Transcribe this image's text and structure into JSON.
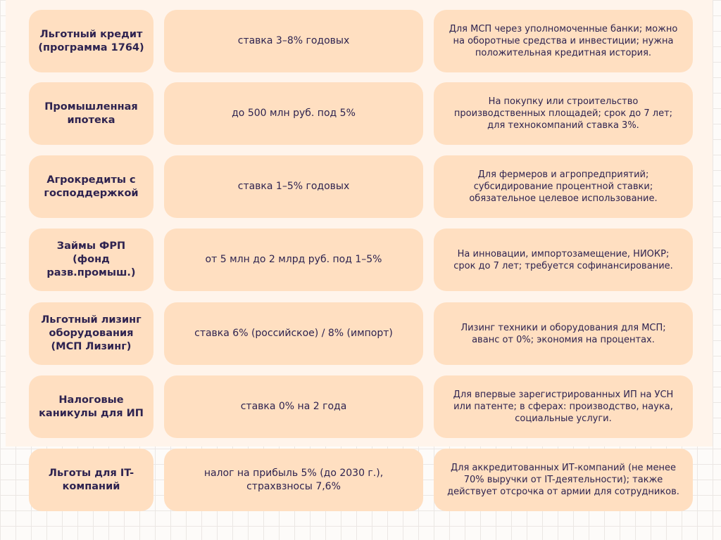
{
  "rows": [
    {
      "name": "Льготный кредит (программа 1764)",
      "terms": "ставка 3–8% годовых",
      "details": "Для МСП через уполномоченные банки; можно на оборотные средства и инвестиции; нужна положительная кредитная история."
    },
    {
      "name": "Промышленная ипотека",
      "terms": "до 500 млн руб. под 5%",
      "details": "На покупку или строительство производственных площадей; срок до 7 лет; для технокомпаний ставка 3%."
    },
    {
      "name": "Агрокредиты с господдержкой",
      "terms": "ставка 1–5% годовых",
      "details": "Для фермеров и агропредприятий; субсидирование процентной ставки; обязательное целевое использование."
    },
    {
      "name": "Займы ФРП (фонд разв.промыш.)",
      "terms": "от 5 млн до 2 млрд руб. под 1–5%",
      "details": "На инновации, импортозамещение, НИОКР; срок до 7 лет; требуется софинансирование."
    },
    {
      "name": "Льготный лизинг оборудования (МСП Лизинг)",
      "terms": "ставка 6% (российское) / 8% (импорт)",
      "details": "Лизинг техники и оборудования для МСП; аванс от 0%; экономия на процентах."
    },
    {
      "name": "Налоговые каникулы для ИП",
      "terms": "ставка 0% на 2 года",
      "details": "Для впервые зарегистрированных ИП на УСН или патенте; в сферах: производство, наука, социальные услуги."
    },
    {
      "name": "Льготы для IT-компаний",
      "terms": "налог на прибыль 5% (до 2030 г.), страхвзносы 7,6%",
      "details": "Для аккредитованных ИТ-компаний (не менее 70% выручки от IT-деятельности); также действует отсрочка от армии для сотрудников."
    }
  ],
  "colors": {
    "card": "#ffdfc1",
    "panel": "#fff4eb",
    "text": "#2e2350"
  }
}
